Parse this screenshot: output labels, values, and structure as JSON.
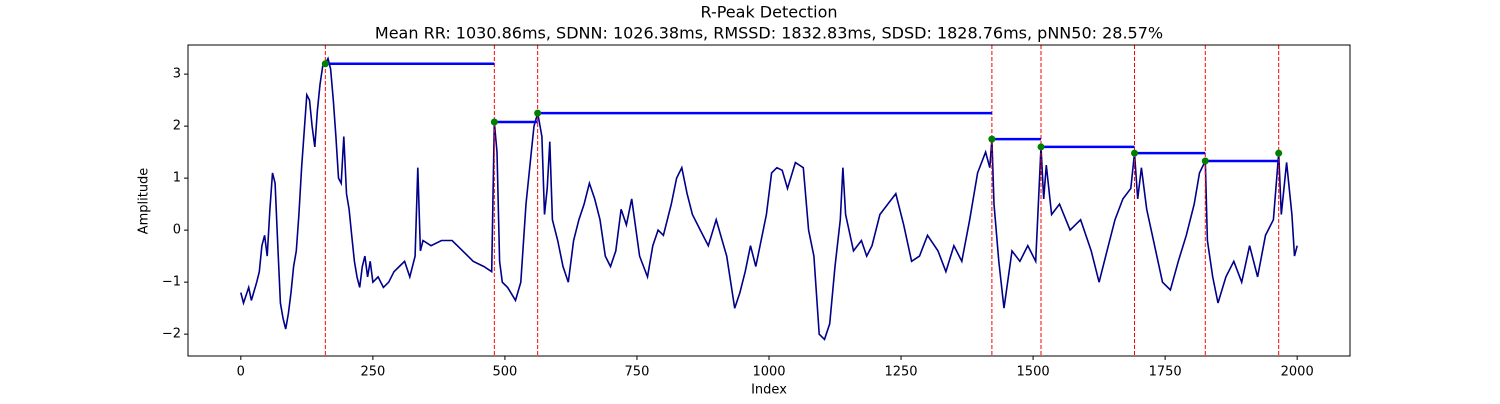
{
  "chart_data": {
    "type": "line",
    "title": "R-Peak Detection",
    "subtitle": "Mean RR: 1030.86ms, SDNN: 1026.38ms, RMSSD: 1832.83ms, SDSD: 1828.76ms, pNN50: 28.57%",
    "x_label": "Index",
    "y_label": "Amplitude",
    "xlim": [
      -100,
      2100
    ],
    "ylim": [
      -2.42,
      3.56
    ],
    "xticks": [
      0,
      250,
      500,
      750,
      1000,
      1250,
      1500,
      1750,
      2000
    ],
    "yticks": [
      {
        "value": -2,
        "label": "−2"
      },
      {
        "value": -1,
        "label": "−1"
      },
      0,
      1,
      2,
      3
    ],
    "signal": {
      "color": "#00008b",
      "x": [
        0,
        5,
        15,
        20,
        30,
        35,
        40,
        45,
        50,
        55,
        60,
        65,
        70,
        75,
        80,
        85,
        90,
        95,
        100,
        105,
        110,
        115,
        120,
        125,
        130,
        135,
        140,
        145,
        150,
        155,
        160,
        165,
        170,
        175,
        180,
        185,
        190,
        195,
        200,
        205,
        210,
        215,
        220,
        225,
        230,
        235,
        240,
        245,
        250,
        260,
        270,
        280,
        290,
        300,
        310,
        320,
        330,
        335,
        340,
        345,
        360,
        380,
        400,
        420,
        440,
        460,
        475,
        480,
        485,
        490,
        495,
        505,
        520,
        530,
        540,
        550,
        555,
        562,
        570,
        575,
        580,
        585,
        590,
        600,
        610,
        620,
        630,
        640,
        650,
        660,
        670,
        680,
        690,
        700,
        710,
        720,
        730,
        740,
        755,
        770,
        780,
        790,
        800,
        815,
        825,
        835,
        845,
        855,
        870,
        885,
        900,
        920,
        935,
        945,
        955,
        965,
        975,
        985,
        995,
        1005,
        1015,
        1025,
        1035,
        1050,
        1065,
        1075,
        1085,
        1095,
        1105,
        1115,
        1125,
        1135,
        1140,
        1145,
        1160,
        1175,
        1185,
        1195,
        1210,
        1225,
        1240,
        1255,
        1270,
        1285,
        1300,
        1320,
        1335,
        1350,
        1365,
        1380,
        1395,
        1410,
        1418,
        1422,
        1426,
        1435,
        1445,
        1460,
        1475,
        1490,
        1505,
        1515,
        1520,
        1525,
        1535,
        1550,
        1570,
        1590,
        1610,
        1625,
        1640,
        1655,
        1670,
        1685,
        1692,
        1698,
        1705,
        1715,
        1730,
        1745,
        1760,
        1775,
        1790,
        1805,
        1815,
        1826,
        1830,
        1840,
        1850,
        1865,
        1880,
        1895,
        1910,
        1925,
        1940,
        1955,
        1965,
        1970,
        1980,
        1990,
        1995,
        2000
      ],
      "values": [
        -1.2,
        -1.4,
        -1.1,
        -1.35,
        -1.0,
        -0.8,
        -0.3,
        -0.1,
        -0.5,
        0.4,
        1.1,
        0.9,
        -0.3,
        -1.4,
        -1.7,
        -1.9,
        -1.6,
        -1.2,
        -0.7,
        -0.4,
        0.3,
        1.2,
        1.9,
        2.6,
        2.5,
        2.0,
        1.6,
        2.3,
        2.8,
        3.15,
        3.2,
        3.3,
        3.1,
        2.5,
        1.8,
        1.0,
        0.9,
        1.8,
        0.7,
        0.4,
        -0.1,
        -0.6,
        -0.9,
        -1.1,
        -0.7,
        -0.5,
        -0.9,
        -0.6,
        -1.0,
        -0.9,
        -1.1,
        -1.0,
        -0.8,
        -0.7,
        -0.6,
        -0.9,
        -0.5,
        1.2,
        -0.4,
        -0.2,
        -0.3,
        -0.2,
        -0.2,
        -0.4,
        -0.6,
        -0.7,
        -0.8,
        2.08,
        1.5,
        -0.6,
        -1.0,
        -1.1,
        -1.35,
        -1.0,
        0.5,
        1.5,
        2.0,
        2.25,
        1.8,
        0.3,
        0.8,
        1.7,
        0.2,
        -0.2,
        -0.7,
        -1.0,
        -0.2,
        0.2,
        0.5,
        0.9,
        0.6,
        0.2,
        -0.5,
        -0.7,
        -0.4,
        0.4,
        0.1,
        0.6,
        -0.5,
        -0.9,
        -0.3,
        0.0,
        -0.1,
        0.5,
        1.0,
        1.2,
        0.7,
        0.3,
        0.0,
        -0.3,
        0.2,
        -0.5,
        -1.5,
        -1.2,
        -0.8,
        -0.3,
        -0.7,
        -0.2,
        0.3,
        1.1,
        1.2,
        1.15,
        0.8,
        1.3,
        1.2,
        0.0,
        -0.5,
        -2.0,
        -2.1,
        -1.8,
        -0.7,
        0.2,
        1.2,
        0.3,
        -0.4,
        -0.2,
        -0.5,
        -0.3,
        0.3,
        0.5,
        0.7,
        0.1,
        -0.6,
        -0.5,
        -0.1,
        -0.4,
        -0.8,
        -0.3,
        -0.6,
        0.2,
        1.1,
        1.5,
        1.2,
        1.75,
        0.5,
        -0.6,
        -1.5,
        -0.4,
        -0.6,
        -0.3,
        -0.6,
        1.6,
        0.6,
        1.25,
        0.3,
        0.5,
        0.0,
        0.2,
        -0.4,
        -1.0,
        -0.4,
        0.2,
        0.6,
        0.8,
        1.48,
        0.6,
        1.2,
        0.4,
        -0.3,
        -1.0,
        -1.15,
        -0.6,
        -0.1,
        0.5,
        1.1,
        1.33,
        -0.2,
        -0.9,
        -1.4,
        -0.9,
        -0.6,
        -1.0,
        -0.3,
        -0.9,
        -0.1,
        0.2,
        1.48,
        0.3,
        1.3,
        0.3,
        -0.5,
        -0.3
      ]
    },
    "peaks": {
      "color": "#008000",
      "x": [
        160,
        480,
        562,
        1422,
        1515,
        1692,
        1826,
        1965
      ],
      "values": [
        3.2,
        2.08,
        2.25,
        1.75,
        1.6,
        1.48,
        1.33,
        1.48
      ]
    },
    "peak_line_color": "#ff0000",
    "interval_line_color": "#0000ff"
  }
}
